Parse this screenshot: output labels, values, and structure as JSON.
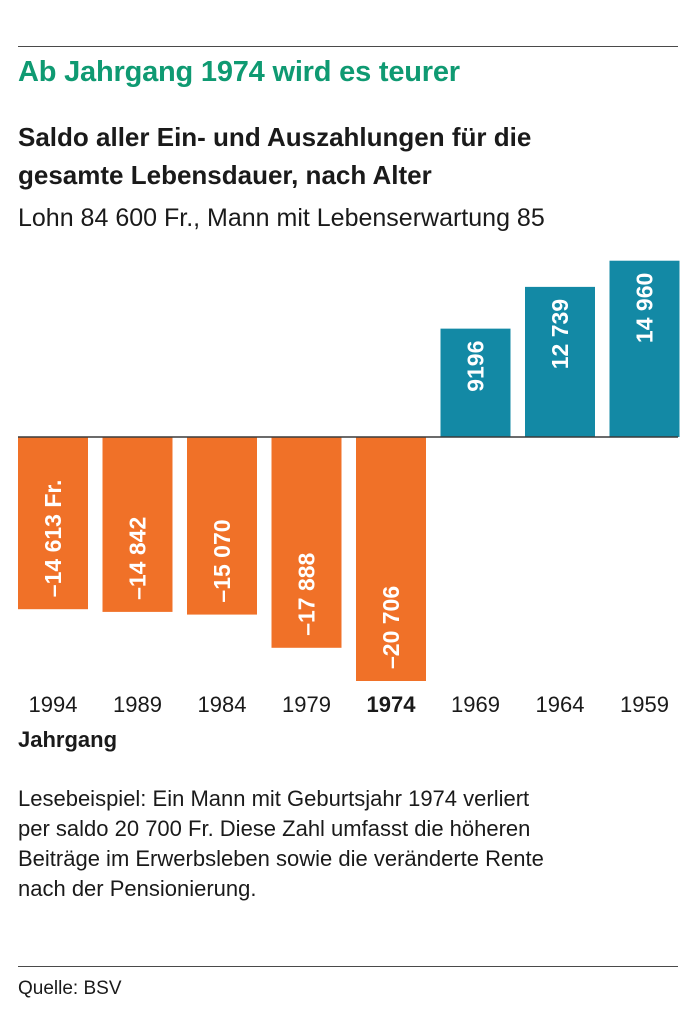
{
  "headline": "Ab Jahrgang 1974 wird es teurer",
  "subtitle_line1": "Saldo aller Ein- und Auszahlungen für die",
  "subtitle_line2": "gesamte Lebensdauer, nach Alter",
  "note": "Lohn 84 600 Fr., Mann mit Lebenserwartung 85",
  "reading_example": [
    "Lesebeispiel: Ein Mann mit Geburtsjahr 1974 verliert",
    "per saldo 20 700 Fr. Diese Zahl umfasst die höheren",
    "Beiträge im Erwerbsleben sowie die veränderte Rente",
    "nach der Pensionierung."
  ],
  "source": "Quelle: BSV",
  "colors": {
    "negative": "#f07128",
    "positive": "#1389a5",
    "headline": "#0f9a72"
  },
  "chart_data": {
    "type": "bar",
    "title": "Saldo aller Ein- und Auszahlungen für die gesamte Lebensdauer, nach Alter",
    "xlabel": "Jahrgang",
    "ylabel": "",
    "unit": "Fr.",
    "categories": [
      "1994",
      "1989",
      "1984",
      "1979",
      "1974",
      "1969",
      "1964",
      "1959"
    ],
    "values": [
      -14613,
      -14842,
      -15070,
      -17888,
      -20706,
      9196,
      12739,
      14960
    ],
    "labels": [
      "–14 613 Fr.",
      "–14 842",
      "–15 070",
      "–17 888",
      "–20 706",
      "9196",
      "12 739",
      "14 960"
    ],
    "highlight_category": "1974",
    "ylim": [
      -20706,
      14960
    ]
  }
}
